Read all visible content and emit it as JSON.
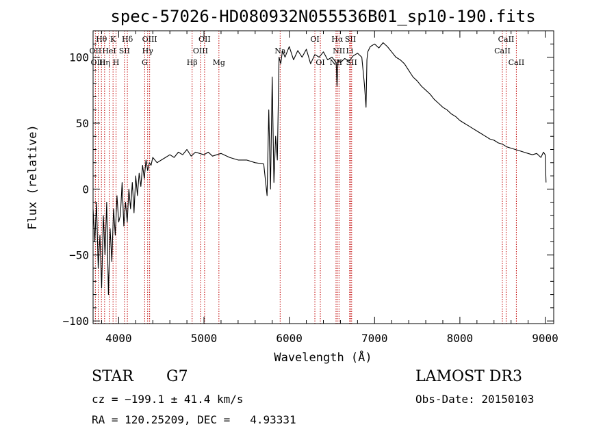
{
  "chart_data": {
    "type": "line",
    "title": "spec-57026-HD080932N055536B01_sp10-190.fits",
    "xlabel": "Wavelength (Å)",
    "ylabel": "Flux (relative)",
    "xlim": [
      3700,
      9100
    ],
    "ylim": [
      -102,
      120
    ],
    "x_ticks": [
      4000,
      5000,
      6000,
      7000,
      8000,
      9000
    ],
    "y_ticks": [
      -100,
      -50,
      0,
      50,
      100
    ],
    "series": [
      {
        "name": "spectrum",
        "x": [
          3700,
          3720,
          3740,
          3760,
          3780,
          3800,
          3820,
          3840,
          3860,
          3880,
          3900,
          3920,
          3940,
          3960,
          3980,
          4000,
          4020,
          4040,
          4060,
          4080,
          4100,
          4120,
          4140,
          4160,
          4180,
          4200,
          4220,
          4240,
          4260,
          4280,
          4300,
          4320,
          4340,
          4360,
          4380,
          4400,
          4450,
          4500,
          4550,
          4600,
          4650,
          4700,
          4750,
          4800,
          4850,
          4900,
          4950,
          5000,
          5050,
          5100,
          5150,
          5200,
          5300,
          5400,
          5500,
          5600,
          5700,
          5740,
          5760,
          5780,
          5800,
          5820,
          5840,
          5860,
          5880,
          5900,
          5920,
          5950,
          6000,
          6050,
          6100,
          6150,
          6200,
          6250,
          6300,
          6350,
          6400,
          6450,
          6500,
          6550,
          6560,
          6570,
          6580,
          6600,
          6650,
          6700,
          6750,
          6800,
          6850,
          6880,
          6900,
          6910,
          6920,
          6950,
          7000,
          7050,
          7100,
          7150,
          7200,
          7250,
          7300,
          7350,
          7400,
          7450,
          7500,
          7550,
          7600,
          7650,
          7700,
          7750,
          7800,
          7850,
          7900,
          7950,
          8000,
          8050,
          8100,
          8150,
          8200,
          8250,
          8300,
          8350,
          8400,
          8450,
          8500,
          8550,
          8600,
          8650,
          8700,
          8750,
          8800,
          8850,
          8900,
          8950,
          8980,
          9000,
          9010
        ],
        "y": [
          -15,
          -40,
          -10,
          -60,
          -35,
          -75,
          -20,
          -50,
          -10,
          -80,
          -30,
          -55,
          -15,
          -35,
          -5,
          -25,
          -20,
          5,
          -28,
          -10,
          -25,
          0,
          -15,
          5,
          -18,
          10,
          -5,
          12,
          2,
          18,
          8,
          22,
          14,
          20,
          18,
          24,
          20,
          22,
          24,
          26,
          24,
          28,
          26,
          30,
          25,
          28,
          27,
          26,
          28,
          25,
          26,
          27,
          24,
          22,
          22,
          20,
          19,
          -5,
          60,
          0,
          85,
          5,
          40,
          22,
          100,
          95,
          105,
          100,
          108,
          98,
          105,
          100,
          106,
          95,
          102,
          100,
          104,
          98,
          100,
          96,
          78,
          95,
          98,
          96,
          99,
          97,
          101,
          103,
          100,
          80,
          62,
          98,
          104,
          108,
          110,
          107,
          111,
          108,
          104,
          100,
          98,
          95,
          90,
          85,
          82,
          78,
          75,
          72,
          68,
          65,
          62,
          60,
          57,
          55,
          52,
          50,
          48,
          46,
          44,
          42,
          40,
          38,
          37,
          35,
          34,
          32,
          31,
          30,
          29,
          28,
          27,
          26,
          27,
          24,
          28,
          26,
          5
        ]
      }
    ],
    "line_markers": [
      {
        "label": "Hθ",
        "x": 3798,
        "row": 1
      },
      {
        "label": "K",
        "x": 3934,
        "row": 1
      },
      {
        "label": "Hδ",
        "x": 4102,
        "row": 1
      },
      {
        "label": "OIII",
        "x": 4363,
        "row": 1
      },
      {
        "label": "OII",
        "x": 5007,
        "row": 1
      },
      {
        "label": "OI",
        "x": 6300,
        "row": 1
      },
      {
        "label": "Hα",
        "x": 6563,
        "row": 1
      },
      {
        "label": "SII",
        "x": 6717,
        "row": 1
      },
      {
        "label": "CaII",
        "x": 8542,
        "row": 1
      },
      {
        "label": "OII",
        "x": 3727,
        "row": 2
      },
      {
        "label": "HeI",
        "x": 3889,
        "row": 2
      },
      {
        "label": "SII",
        "x": 4068,
        "row": 2
      },
      {
        "label": "Hγ",
        "x": 4340,
        "row": 2
      },
      {
        "label": "OIII",
        "x": 4959,
        "row": 2
      },
      {
        "label": "Na",
        "x": 5893,
        "row": 2
      },
      {
        "label": "NII",
        "x": 6583,
        "row": 2
      },
      {
        "label": "Li",
        "x": 6708,
        "row": 2
      },
      {
        "label": "CaII",
        "x": 8498,
        "row": 2
      },
      {
        "label": "OIII",
        "x": 3760,
        "row": 3
      },
      {
        "label": "Hη",
        "x": 3835,
        "row": 3
      },
      {
        "label": "H",
        "x": 3969,
        "row": 3
      },
      {
        "label": "G",
        "x": 4305,
        "row": 3
      },
      {
        "label": "Hβ",
        "x": 4861,
        "row": 3
      },
      {
        "label": "Mg",
        "x": 5175,
        "row": 3
      },
      {
        "label": "OI",
        "x": 6364,
        "row": 3
      },
      {
        "label": "NII",
        "x": 6548,
        "row": 3
      },
      {
        "label": "SII",
        "x": 6731,
        "row": 3
      },
      {
        "label": "CaII",
        "x": 8662,
        "row": 3
      }
    ]
  },
  "info": {
    "object_class": "STAR",
    "subclass": "G7",
    "survey": "LAMOST DR3",
    "cz": "cz = −199.1 ± 41.4 km/s",
    "obs_date": "Obs-Date: 20150103",
    "coords": "RA = 120.25209, DEC =   4.93331"
  }
}
